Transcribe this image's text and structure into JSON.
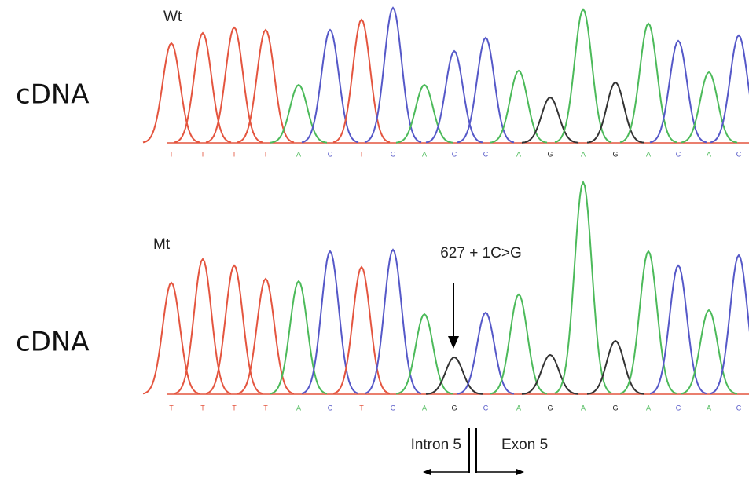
{
  "panels": [
    {
      "side_label": "cDNA",
      "label": "Wt",
      "bases": [
        "T",
        "T",
        "T",
        "T",
        "A",
        "C",
        "T",
        "C",
        "A",
        "C",
        "C",
        "A",
        "G",
        "A",
        "G",
        "A",
        "C",
        "A",
        "C"
      ]
    },
    {
      "side_label": "cDNA",
      "label": "Mt",
      "bases": [
        "T",
        "T",
        "T",
        "T",
        "A",
        "C",
        "T",
        "C",
        "A",
        "G",
        "C",
        "A",
        "G",
        "A",
        "G",
        "A",
        "C",
        "A",
        "C"
      ]
    }
  ],
  "annotation": {
    "mutation": "627 + 1C>G",
    "left": "Intron 5",
    "right": "Exon 5"
  }
}
